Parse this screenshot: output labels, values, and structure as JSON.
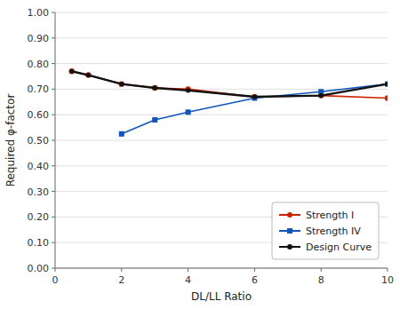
{
  "chart_data": {
    "type": "line",
    "xlabel": "DL/LL Ratio",
    "ylabel": "Required φ-factor",
    "series": [
      {
        "name": "Strength I",
        "color": "#cc2200",
        "marker": "circle",
        "x": [
          0.5,
          1,
          2,
          3,
          4,
          6,
          8,
          10
        ],
        "values": [
          0.77,
          0.755,
          0.72,
          0.705,
          0.7,
          0.67,
          0.675,
          0.665
        ]
      },
      {
        "name": "Strength IV",
        "color": "#1155bb",
        "marker": "square",
        "x": [
          2,
          3,
          4,
          6,
          8,
          10
        ],
        "values": [
          0.525,
          0.58,
          0.61,
          0.665,
          0.69,
          0.72
        ]
      },
      {
        "name": "Design Curve",
        "color": "#111111",
        "marker": "circle",
        "x": [
          0.5,
          1,
          2,
          3,
          4,
          6,
          8,
          10
        ],
        "values": [
          0.77,
          0.755,
          0.72,
          0.705,
          0.695,
          0.67,
          0.675,
          0.72
        ]
      }
    ],
    "xlim": [
      0,
      10
    ],
    "ylim": [
      0.0,
      1.0
    ],
    "xticks": [
      0,
      2,
      4,
      6,
      8,
      10
    ],
    "yticks": [
      {
        "value": 0.0,
        "label": "0.00"
      },
      {
        "value": 0.1,
        "label": "0.10"
      },
      {
        "value": 0.2,
        "label": "0.20"
      },
      {
        "value": 0.3,
        "label": "0.30"
      },
      {
        "value": 0.4,
        "label": "0.40"
      },
      {
        "value": 0.5,
        "label": "0.50"
      },
      {
        "value": 0.6,
        "label": "0.60"
      },
      {
        "value": 0.7,
        "label": "0.70"
      },
      {
        "value": 0.8,
        "label": "0.80"
      },
      {
        "value": 0.9,
        "label": "0.90"
      },
      {
        "value": 1.0,
        "label": "1.00"
      }
    ],
    "grid": "y",
    "legend": "lower right"
  }
}
